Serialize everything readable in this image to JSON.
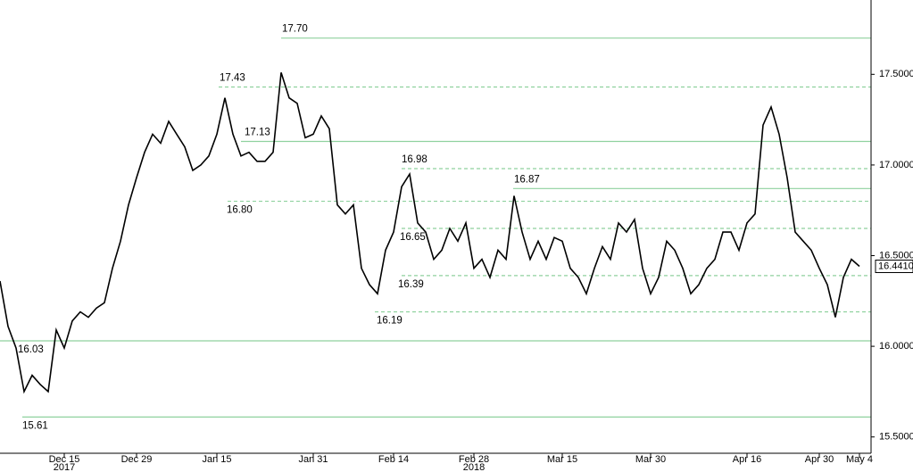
{
  "chart_data": {
    "type": "line",
    "categories": [
      null,
      null,
      null,
      null,
      null,
      null,
      null,
      null,
      "Dec 15",
      null,
      null,
      null,
      null,
      null,
      null,
      null,
      null,
      "Dec 29",
      null,
      null,
      null,
      null,
      null,
      null,
      null,
      null,
      null,
      "Jan 15",
      null,
      null,
      null,
      null,
      null,
      null,
      null,
      null,
      null,
      null,
      null,
      "Jan 31",
      null,
      null,
      null,
      null,
      null,
      null,
      null,
      null,
      null,
      "Feb 14",
      null,
      null,
      null,
      null,
      null,
      null,
      null,
      null,
      null,
      "Feb 28",
      null,
      null,
      null,
      null,
      null,
      null,
      null,
      null,
      null,
      null,
      "Mar 15",
      null,
      null,
      null,
      null,
      null,
      null,
      null,
      null,
      null,
      null,
      "Mar 30",
      null,
      null,
      null,
      null,
      null,
      null,
      null,
      null,
      null,
      null,
      null,
      "Apr 16",
      null,
      null,
      null,
      null,
      null,
      null,
      null,
      null,
      "Apr 30",
      null,
      null,
      null,
      null,
      "May 4"
    ],
    "year_labels": [
      {
        "at": "Dec 15",
        "label": "2017"
      },
      {
        "at": "Feb 28",
        "label": "2018"
      }
    ],
    "values": [
      16.36,
      16.11,
      15.99,
      15.75,
      15.84,
      15.79,
      15.75,
      16.09,
      15.99,
      16.14,
      16.19,
      16.16,
      16.21,
      16.24,
      16.43,
      16.58,
      16.78,
      16.93,
      17.07,
      17.17,
      17.12,
      17.24,
      17.17,
      17.1,
      16.97,
      17.0,
      17.05,
      17.17,
      17.37,
      17.17,
      17.05,
      17.07,
      17.02,
      17.02,
      17.07,
      17.51,
      17.37,
      17.34,
      17.15,
      17.17,
      17.27,
      17.2,
      16.78,
      16.73,
      16.78,
      16.43,
      16.34,
      16.29,
      16.53,
      16.63,
      16.88,
      16.95,
      16.68,
      16.63,
      16.48,
      16.53,
      16.65,
      16.58,
      16.68,
      16.43,
      16.48,
      16.38,
      16.53,
      16.48,
      16.83,
      16.63,
      16.48,
      16.58,
      16.48,
      16.6,
      16.58,
      16.43,
      16.38,
      16.29,
      16.43,
      16.55,
      16.48,
      16.68,
      16.63,
      16.7,
      16.43,
      16.29,
      16.38,
      16.58,
      16.53,
      16.43,
      16.29,
      16.34,
      16.43,
      16.48,
      16.63,
      16.63,
      16.53,
      16.68,
      16.73,
      17.22,
      17.32,
      17.17,
      16.93,
      16.63,
      16.58,
      16.53,
      16.43,
      16.34,
      16.16,
      16.38,
      16.48,
      16.441
    ],
    "color": "#000000",
    "ylim": [
      15.41,
      17.91
    ],
    "yticks": [
      {
        "value": 15.5,
        "label": "15.5000"
      },
      {
        "value": 16,
        "label": "16.0000"
      },
      {
        "value": 16.5,
        "label": "16.5000"
      },
      {
        "value": 17,
        "label": "17.0000"
      },
      {
        "value": 17.5,
        "label": "17.5000"
      }
    ],
    "last_price": {
      "value": 16.441,
      "label": "16.4410"
    },
    "level_color": "#8fd19e",
    "levels": [
      {
        "value": 17.7,
        "label": "17.70",
        "style": "solid"
      },
      {
        "value": 17.43,
        "label": "17.43",
        "style": "dashed"
      },
      {
        "value": 17.13,
        "label": "17.13",
        "style": "solid"
      },
      {
        "value": 16.98,
        "label": "16.98",
        "style": "dashed"
      },
      {
        "value": 16.87,
        "label": "16.87",
        "style": "solid"
      },
      {
        "value": 16.8,
        "label": "16.80",
        "style": "dashed"
      },
      {
        "value": 16.65,
        "label": "16.65",
        "style": "dashed"
      },
      {
        "value": 16.39,
        "label": "16.39",
        "style": "dashed"
      },
      {
        "value": 16.19,
        "label": "16.19",
        "style": "dashed"
      },
      {
        "value": 16.03,
        "label": "16.03",
        "style": "solid"
      },
      {
        "value": 15.61,
        "label": "15.61",
        "style": "solid"
      }
    ]
  }
}
